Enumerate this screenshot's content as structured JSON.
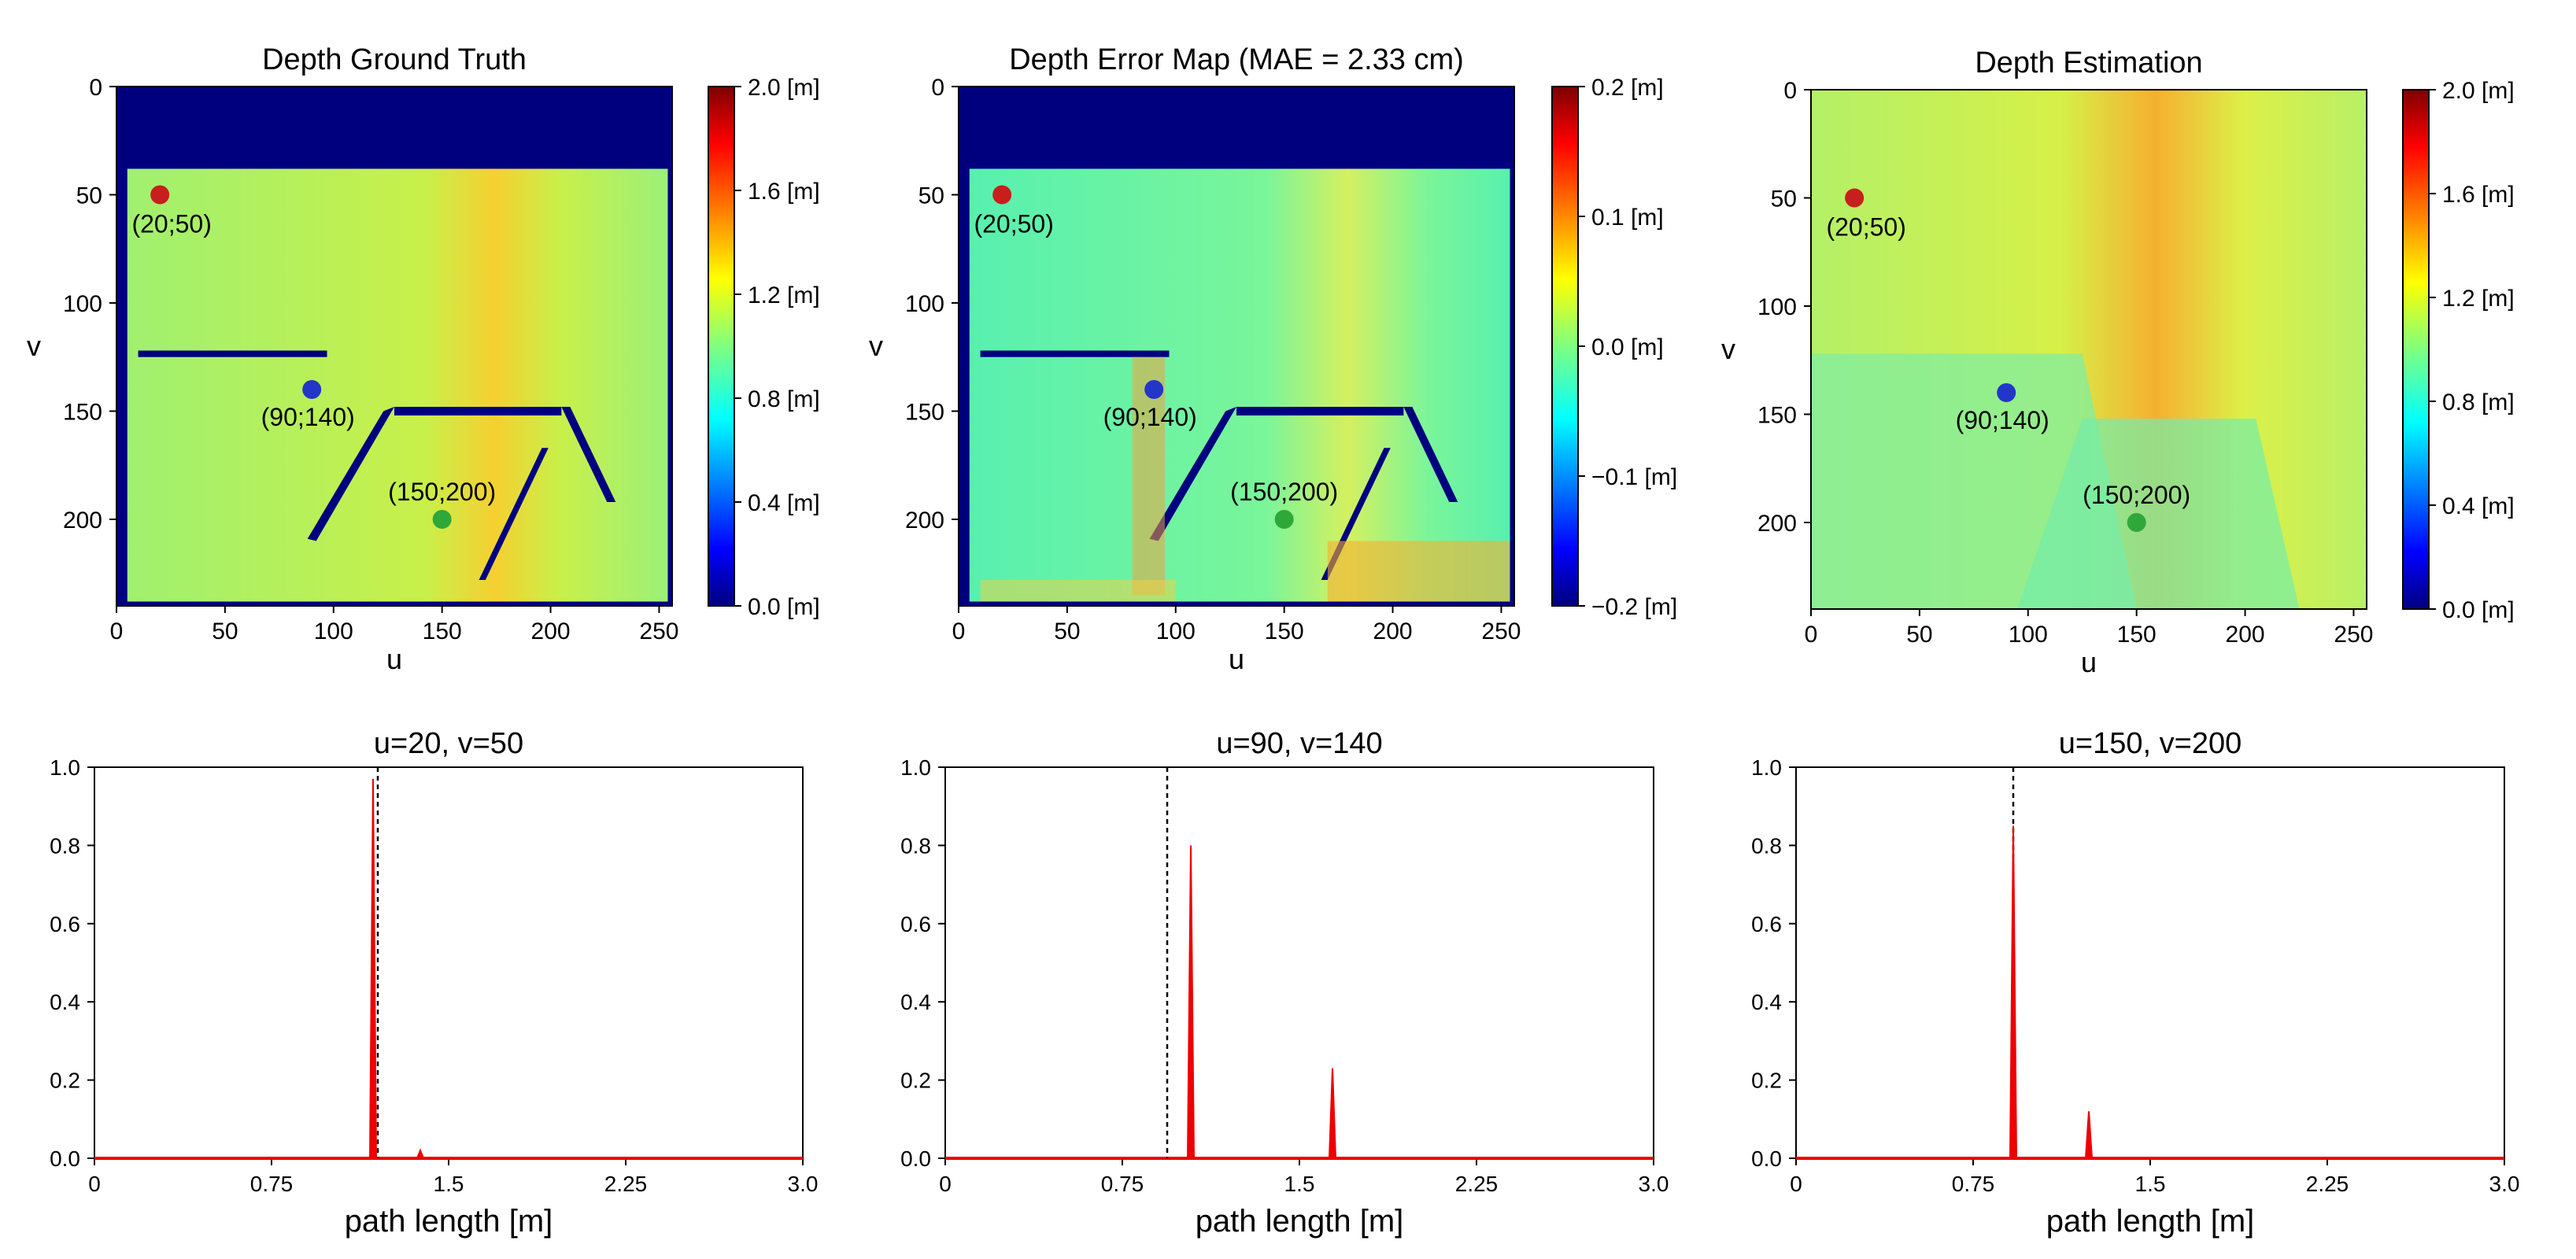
{
  "figure": {
    "heatmaps": [
      {
        "title": "Depth Ground Truth",
        "xlabel": "u",
        "ylabel": "v",
        "xticks": [
          "0",
          "50",
          "100",
          "150",
          "200",
          "250"
        ],
        "yticks": [
          "0",
          "50",
          "100",
          "150",
          "200"
        ],
        "colorbar_ticks": [
          "2.0 [m]",
          "1.6 [m]",
          "1.2 [m]",
          "0.8 [m]",
          "0.4 [m]",
          "0.0 [m]"
        ],
        "points": [
          {
            "label": "(20;50)",
            "color": "#c81e1e"
          },
          {
            "label": "(90;140)",
            "color": "#2336c8"
          },
          {
            "label": "(150;200)",
            "color": "#2fa83a"
          }
        ]
      },
      {
        "title": "Depth Error Map (MAE = 2.33 cm)",
        "xlabel": "u",
        "ylabel": "v",
        "xticks": [
          "0",
          "50",
          "100",
          "150",
          "200",
          "250"
        ],
        "yticks": [
          "0",
          "50",
          "100",
          "150",
          "200"
        ],
        "colorbar_ticks": [
          "0.2 [m]",
          "0.1 [m]",
          "0.0 [m]",
          "−0.1 [m]",
          "−0.2 [m]"
        ],
        "points": [
          {
            "label": "(20;50)",
            "color": "#c81e1e"
          },
          {
            "label": "(90;140)",
            "color": "#2336c8"
          },
          {
            "label": "(150;200)",
            "color": "#2fa83a"
          }
        ]
      },
      {
        "title": "Depth Estimation",
        "xlabel": "u",
        "ylabel": "v",
        "xticks": [
          "0",
          "50",
          "100",
          "150",
          "200",
          "250"
        ],
        "yticks": [
          "0",
          "50",
          "100",
          "150",
          "200"
        ],
        "colorbar_ticks": [
          "2.0 [m]",
          "1.6 [m]",
          "1.2 [m]",
          "0.8 [m]",
          "0.4 [m]",
          "0.0 [m]"
        ],
        "points": [
          {
            "label": "(20;50)",
            "color": "#c81e1e"
          },
          {
            "label": "(90;140)",
            "color": "#2336c8"
          },
          {
            "label": "(150;200)",
            "color": "#2fa83a"
          }
        ]
      }
    ]
  },
  "chart_data": [
    {
      "type": "heatmap",
      "title": "Depth Ground Truth",
      "xlabel": "u",
      "ylabel": "v",
      "xlim": [
        0,
        256
      ],
      "ylim": [
        240,
        0
      ],
      "colormap": "jet",
      "vlim": [
        0.0,
        2.0
      ],
      "colorbar_unit": "[m]",
      "points": [
        {
          "u": 20,
          "v": 50,
          "label": "(20;50)"
        },
        {
          "u": 90,
          "v": 140,
          "label": "(90;140)"
        },
        {
          "u": 150,
          "v": 200,
          "label": "(150;200)"
        }
      ]
    },
    {
      "type": "heatmap",
      "title": "Depth Error Map (MAE = 2.33 cm)",
      "xlabel": "u",
      "ylabel": "v",
      "xlim": [
        0,
        256
      ],
      "ylim": [
        240,
        0
      ],
      "colormap": "jet",
      "vlim": [
        -0.2,
        0.2
      ],
      "colorbar_unit": "[m]",
      "points": [
        {
          "u": 20,
          "v": 50,
          "label": "(20;50)"
        },
        {
          "u": 90,
          "v": 140,
          "label": "(90;140)"
        },
        {
          "u": 150,
          "v": 200,
          "label": "(150;200)"
        }
      ]
    },
    {
      "type": "heatmap",
      "title": "Depth Estimation",
      "xlabel": "u",
      "ylabel": "v",
      "xlim": [
        0,
        256
      ],
      "ylim": [
        240,
        0
      ],
      "colormap": "jet",
      "vlim": [
        0.0,
        2.0
      ],
      "colorbar_unit": "[m]",
      "points": [
        {
          "u": 20,
          "v": 50,
          "label": "(20;50)"
        },
        {
          "u": 90,
          "v": 140,
          "label": "(90;140)"
        },
        {
          "u": 150,
          "v": 200,
          "label": "(150;200)"
        }
      ]
    },
    {
      "type": "line",
      "title": "u=20, v=50",
      "xlabel": "path length [m]",
      "ylabel": "",
      "xlim": [
        0,
        3.0
      ],
      "ylim": [
        0,
        1.0
      ],
      "xticks": [
        "0",
        "0.75",
        "1.5",
        "2.25",
        "3.0"
      ],
      "yticks": [
        "0.0",
        "0.2",
        "0.4",
        "0.6",
        "0.8",
        "1.0"
      ],
      "series": [
        {
          "name": "histogram",
          "color": "#ee0000",
          "peaks": [
            {
              "x": 1.18,
              "y": 0.97
            },
            {
              "x": 1.38,
              "y": 0.02
            }
          ]
        }
      ],
      "vline": 1.2
    },
    {
      "type": "line",
      "title": "u=90, v=140",
      "xlabel": "path length [m]",
      "ylabel": "",
      "xlim": [
        0,
        3.0
      ],
      "ylim": [
        0,
        1.0
      ],
      "xticks": [
        "0",
        "0.75",
        "1.5",
        "2.25",
        "3.0"
      ],
      "yticks": [
        "0.0",
        "0.2",
        "0.4",
        "0.6",
        "0.8",
        "1.0"
      ],
      "series": [
        {
          "name": "histogram",
          "color": "#ee0000",
          "peaks": [
            {
              "x": 1.04,
              "y": 0.8
            },
            {
              "x": 1.64,
              "y": 0.23
            }
          ]
        }
      ],
      "vline": 0.94
    },
    {
      "type": "line",
      "title": "u=150, v=200",
      "xlabel": "path length [m]",
      "ylabel": "",
      "xlim": [
        0,
        3.0
      ],
      "ylim": [
        0,
        1.0
      ],
      "xticks": [
        "0",
        "0.75",
        "1.5",
        "2.25",
        "3.0"
      ],
      "yticks": [
        "0.0",
        "0.2",
        "0.4",
        "0.6",
        "0.8",
        "1.0"
      ],
      "series": [
        {
          "name": "histogram",
          "color": "#ee0000",
          "peaks": [
            {
              "x": 0.92,
              "y": 0.85
            },
            {
              "x": 1.24,
              "y": 0.12
            }
          ]
        }
      ],
      "vline": 0.92
    }
  ]
}
